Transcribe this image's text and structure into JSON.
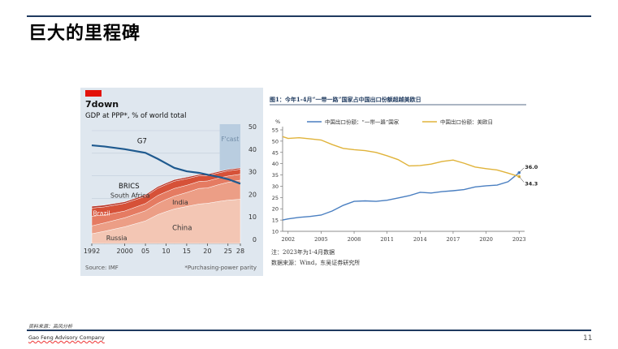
{
  "slide": {
    "title": "巨大的里程碑",
    "source_note": "资料来源：高风分析",
    "company": "Gao Feng Advisory Company",
    "page_number": "11"
  },
  "chart_data": [
    {
      "type": "area",
      "title": "7down",
      "subtitle": "GDP at PPP*, % of world total",
      "source": "Source: IMF",
      "footnote": "*Purchasing-power parity",
      "forecast_label": "F'cast",
      "forecast_start": 2023,
      "x_ticks": [
        "1992",
        "2000",
        "05",
        "10",
        "15",
        "20",
        "25",
        "28"
      ],
      "x_tick_values": [
        1992,
        2000,
        2005,
        2010,
        2015,
        2020,
        2025,
        2028
      ],
      "y_ticks": [
        0,
        10,
        20,
        30,
        40,
        50
      ],
      "ylim": [
        0,
        50
      ],
      "xlim": [
        1992,
        2028
      ],
      "y_axis_side": "right",
      "x": [
        1992,
        1995,
        2000,
        2005,
        2008,
        2010,
        2012,
        2015,
        2018,
        2020,
        2023,
        2025,
        2028
      ],
      "stack": [
        {
          "name": "China",
          "color": "#f3c6b4",
          "values": [
            4.3,
            5.4,
            7.4,
            10.0,
            12.8,
            14.1,
            15.3,
            16.4,
            17.5,
            17.8,
            18.7,
            19.2,
            19.6
          ]
        },
        {
          "name": "India",
          "color": "#ec9e86",
          "values": [
            3.5,
            3.7,
            4.0,
            4.5,
            5.0,
            5.4,
            5.7,
            6.2,
            6.9,
            6.8,
            7.5,
            7.9,
            8.5
          ]
        },
        {
          "name": "Russia",
          "color": "#e57b62",
          "values": [
            4.3,
            3.5,
            3.0,
            3.2,
            3.5,
            3.4,
            3.4,
            3.2,
            3.1,
            3.1,
            2.9,
            2.8,
            2.6
          ]
        },
        {
          "name": "Brazil",
          "color": "#d65138",
          "values": [
            3.6,
            3.6,
            3.4,
            3.2,
            3.2,
            3.2,
            3.2,
            2.9,
            2.5,
            2.4,
            2.3,
            2.3,
            2.2
          ]
        },
        {
          "name": "South Africa",
          "color": "#b8372a",
          "values": [
            0.8,
            0.8,
            0.7,
            0.7,
            0.7,
            0.7,
            0.7,
            0.7,
            0.6,
            0.6,
            0.6,
            0.6,
            0.6
          ]
        }
      ],
      "line": {
        "name": "G7",
        "color": "#1f5a8f",
        "values": [
          43.5,
          43.0,
          41.8,
          40.2,
          37.5,
          35.5,
          33.5,
          32.0,
          31.3,
          30.5,
          29.4,
          28.5,
          26.5
        ]
      },
      "labels": {
        "brics": "BRICS",
        "g7": "G7",
        "south_africa": "South Africa",
        "india": "India",
        "brazil": "Brazil",
        "russia": "Russia",
        "china": "China"
      }
    },
    {
      "type": "line",
      "title": "图1：今年1-4月“一带一路”国家占中国出口份额超越美欧日",
      "unit_label": "%",
      "x_ticks": [
        "2002",
        "2005",
        "2008",
        "2011",
        "2014",
        "2017",
        "2020",
        "2023"
      ],
      "x_tick_values": [
        2002,
        2005,
        2008,
        2011,
        2014,
        2017,
        2020,
        2023
      ],
      "xlim": [
        2001.5,
        2023.5
      ],
      "y_ticks": [
        10,
        15,
        20,
        25,
        30,
        35,
        40,
        45,
        50,
        55
      ],
      "ylim": [
        10,
        55
      ],
      "series": [
        {
          "name": "中国出口份额：“一带一路”国家",
          "color": "#4a7fc1",
          "x": [
            2001.5,
            2002,
            2003,
            2004,
            2005,
            2006,
            2007,
            2008,
            2009,
            2010,
            2011,
            2012,
            2013,
            2014,
            2015,
            2016,
            2017,
            2018,
            2019,
            2020,
            2021,
            2022,
            2023
          ],
          "values": [
            15.0,
            15.5,
            16.2,
            16.6,
            17.2,
            19.0,
            21.5,
            23.3,
            23.5,
            23.3,
            23.8,
            24.8,
            25.8,
            27.3,
            27.0,
            27.6,
            28.0,
            28.5,
            29.7,
            30.2,
            30.5,
            32.0,
            36.0
          ]
        },
        {
          "name": "中国出口份额：美欧日",
          "color": "#e0b33a",
          "x": [
            2001.5,
            2002,
            2003,
            2004,
            2005,
            2006,
            2007,
            2008,
            2009,
            2010,
            2011,
            2012,
            2013,
            2014,
            2015,
            2016,
            2017,
            2018,
            2019,
            2020,
            2021,
            2022,
            2023
          ],
          "values": [
            52.0,
            51.2,
            51.5,
            51.0,
            50.5,
            48.5,
            46.8,
            46.2,
            45.8,
            45.0,
            43.5,
            41.8,
            39.0,
            39.2,
            39.8,
            41.0,
            41.6,
            40.2,
            38.5,
            37.8,
            37.2,
            35.8,
            34.3
          ]
        }
      ],
      "annotations": [
        "36.0",
        "34.3"
      ],
      "notes": [
        "注：2023年为1-4月数据",
        "数据来源：Wind，东吴证券研究所"
      ]
    }
  ]
}
